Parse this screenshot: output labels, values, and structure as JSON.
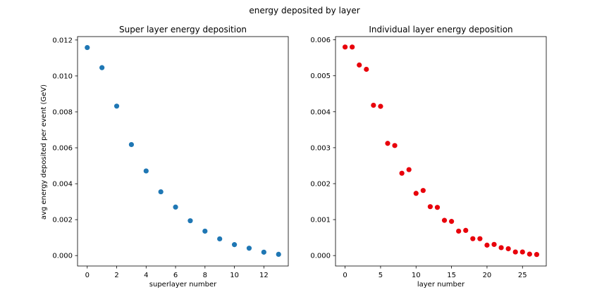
{
  "figure": {
    "suptitle": "energy deposited by layer"
  },
  "chart_data": [
    {
      "type": "scatter",
      "title": "Super layer energy deposition",
      "xlabel": "superlayer number",
      "ylabel": "avg energy deposited per event (GeV)",
      "xlim": [
        -0.66,
        13.66
      ],
      "ylim": [
        -0.00058,
        0.01219
      ],
      "xticks": [
        0,
        2,
        4,
        6,
        8,
        10,
        12
      ],
      "xtick_labels": [
        "0",
        "2",
        "4",
        "6",
        "8",
        "10",
        "12"
      ],
      "yticks": [
        0,
        0.002,
        0.004,
        0.006,
        0.008,
        0.01,
        0.012
      ],
      "ytick_labels": [
        "0.000",
        "0.002",
        "0.004",
        "0.006",
        "0.008",
        "0.010",
        "0.012"
      ],
      "color": "#1f77b4",
      "grid": false,
      "series": [
        {
          "x": [
            0,
            1,
            2,
            3,
            4,
            5,
            6,
            7,
            8,
            9,
            10,
            11,
            12,
            13
          ],
          "y": [
            0.01158,
            0.01046,
            0.00832,
            0.00618,
            0.00471,
            0.00355,
            0.0027,
            0.00194,
            0.00136,
            0.00093,
            0.00061,
            0.00041,
            0.00019,
            7e-05
          ]
        }
      ]
    },
    {
      "type": "scatter",
      "title": "Individual layer energy deposition",
      "xlabel": "layer number",
      "ylabel": "",
      "xlim": [
        -1.35,
        28.35
      ],
      "ylim": [
        -0.00029,
        0.00609
      ],
      "xticks": [
        0,
        5,
        10,
        15,
        20,
        25
      ],
      "xtick_labels": [
        "0",
        "5",
        "10",
        "15",
        "20",
        "25"
      ],
      "yticks": [
        0,
        0.001,
        0.002,
        0.003,
        0.004,
        0.005,
        0.006
      ],
      "ytick_labels": [
        "0.000",
        "0.001",
        "0.002",
        "0.003",
        "0.004",
        "0.005",
        "0.006"
      ],
      "color": "#e8000b",
      "grid": false,
      "series": [
        {
          "x": [
            0,
            1,
            2,
            3,
            4,
            5,
            6,
            7,
            8,
            9,
            10,
            11,
            12,
            13,
            14,
            15,
            16,
            17,
            18,
            19,
            20,
            21,
            22,
            23,
            24,
            25,
            26,
            27
          ],
          "y": [
            0.0058,
            0.0058,
            0.0053,
            0.00518,
            0.00418,
            0.00415,
            0.00312,
            0.00306,
            0.00229,
            0.00239,
            0.00173,
            0.00181,
            0.00136,
            0.00134,
            0.00098,
            0.00095,
            0.00068,
            0.0007,
            0.00047,
            0.00047,
            0.00029,
            0.00031,
            0.00022,
            0.00019,
            0.0001,
            0.0001,
            4e-05,
            3e-05
          ]
        }
      ]
    }
  ]
}
